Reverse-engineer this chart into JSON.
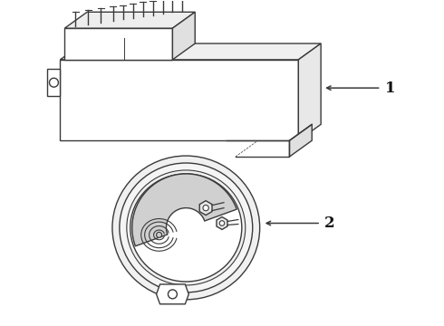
{
  "bg_color": "#ffffff",
  "line_color": "#3a3a3a",
  "label_color": "#111111",
  "label_1": "1",
  "label_2": "2",
  "fig_width": 4.9,
  "fig_height": 3.6,
  "dpi": 100
}
